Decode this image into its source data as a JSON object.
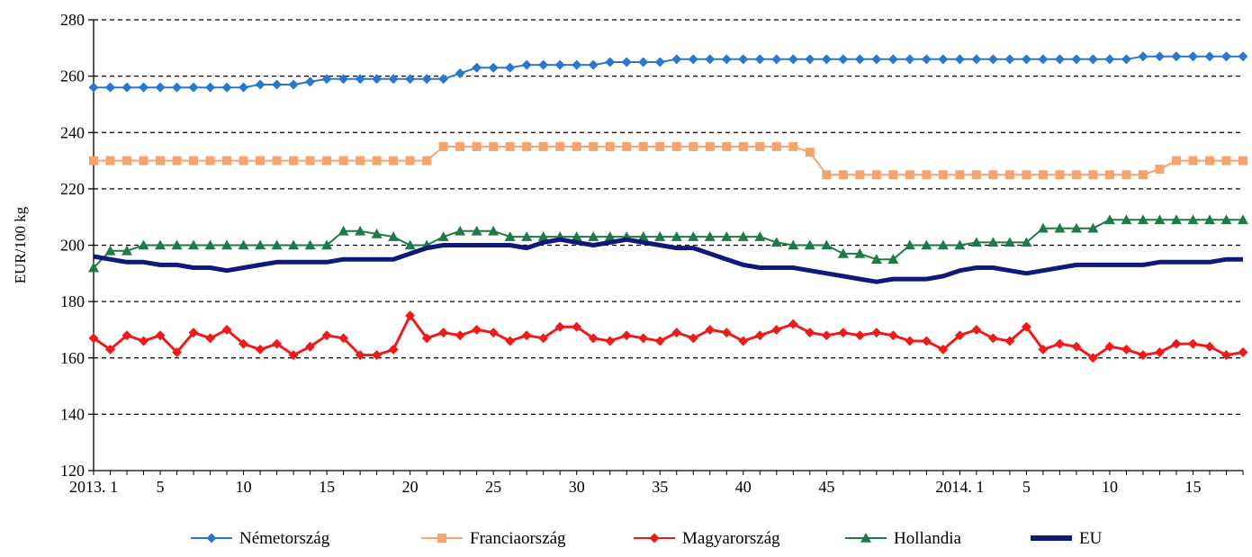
{
  "chart_data": {
    "type": "line",
    "ylabel": "EUR/100 kg",
    "xlabel": "",
    "ylim": [
      120,
      280
    ],
    "y_ticks": [
      120,
      140,
      160,
      180,
      200,
      220,
      240,
      260,
      280
    ],
    "y_tick_labels": [
      "120",
      "140",
      "160",
      "180",
      "200",
      "220",
      "240",
      "260",
      "280"
    ],
    "x_ticks": [
      {
        "index": 0,
        "label": "2013. 1"
      },
      {
        "index": 4,
        "label": "5"
      },
      {
        "index": 9,
        "label": "10"
      },
      {
        "index": 14,
        "label": "15"
      },
      {
        "index": 19,
        "label": "20"
      },
      {
        "index": 24,
        "label": "25"
      },
      {
        "index": 29,
        "label": "30"
      },
      {
        "index": 34,
        "label": "35"
      },
      {
        "index": 39,
        "label": "40"
      },
      {
        "index": 44,
        "label": "45"
      },
      {
        "index": 52,
        "label": "2014. 1"
      },
      {
        "index": 56,
        "label": "5"
      },
      {
        "index": 61,
        "label": "10"
      },
      {
        "index": 66,
        "label": "15"
      }
    ],
    "grid": "horizontal dashed",
    "legend_position": "bottom",
    "n_points": 70,
    "series": [
      {
        "name": "Németország",
        "color": "#2878d0",
        "marker": "diamond",
        "values": [
          256,
          256,
          256,
          256,
          256,
          256,
          256,
          256,
          256,
          256,
          257,
          257,
          257,
          258,
          259,
          259,
          259,
          259,
          259,
          259,
          259,
          259,
          261,
          263,
          263,
          263,
          264,
          264,
          264,
          264,
          264,
          265,
          265,
          265,
          265,
          266,
          266,
          266,
          266,
          266,
          266,
          266,
          266,
          266,
          266,
          266,
          266,
          266,
          266,
          266,
          266,
          266,
          266,
          266,
          266,
          266,
          266,
          266,
          266,
          266,
          266,
          266,
          266,
          267,
          267,
          267,
          267,
          267,
          267,
          267
        ]
      },
      {
        "name": "Franciaország",
        "color": "#f4a46c",
        "marker": "square",
        "values": [
          230,
          230,
          230,
          230,
          230,
          230,
          230,
          230,
          230,
          230,
          230,
          230,
          230,
          230,
          230,
          230,
          230,
          230,
          230,
          230,
          230,
          235,
          235,
          235,
          235,
          235,
          235,
          235,
          235,
          235,
          235,
          235,
          235,
          235,
          235,
          235,
          235,
          235,
          235,
          235,
          235,
          235,
          235,
          233,
          225,
          225,
          225,
          225,
          225,
          225,
          225,
          225,
          225,
          225,
          225,
          225,
          225,
          225,
          225,
          225,
          225,
          225,
          225,
          225,
          227,
          230,
          230,
          230,
          230,
          230
        ]
      },
      {
        "name": "Magyarország",
        "color": "#ec1c1c",
        "marker": "diamond",
        "values": [
          167,
          163,
          168,
          166,
          168,
          162,
          169,
          167,
          170,
          165,
          163,
          165,
          161,
          164,
          168,
          167,
          161,
          161,
          163,
          175,
          167,
          169,
          168,
          170,
          169,
          166,
          168,
          167,
          171,
          171,
          167,
          166,
          168,
          167,
          166,
          169,
          167,
          170,
          169,
          166,
          168,
          170,
          172,
          169,
          168,
          169,
          168,
          169,
          168,
          166,
          166,
          163,
          168,
          170,
          167,
          166,
          171,
          163,
          165,
          164,
          160,
          164,
          163,
          161,
          162,
          165,
          165,
          164,
          161,
          162
        ]
      },
      {
        "name": "Hollandia",
        "color": "#1e7a46",
        "marker": "triangle",
        "values": [
          192,
          198,
          198,
          200,
          200,
          200,
          200,
          200,
          200,
          200,
          200,
          200,
          200,
          200,
          200,
          205,
          205,
          204,
          203,
          200,
          200,
          203,
          205,
          205,
          205,
          203,
          203,
          203,
          203,
          203,
          203,
          203,
          203,
          203,
          203,
          203,
          203,
          203,
          203,
          203,
          203,
          201,
          200,
          200,
          200,
          197,
          197,
          195,
          195,
          200,
          200,
          200,
          200,
          201,
          201,
          201,
          201,
          206,
          206,
          206,
          206,
          209,
          209,
          209,
          209,
          209,
          209,
          209,
          209,
          209
        ]
      },
      {
        "name": "EU",
        "color": "#10187a",
        "marker": "none",
        "values": [
          196,
          195,
          194,
          194,
          193,
          193,
          192,
          192,
          191,
          192,
          193,
          194,
          194,
          194,
          194,
          195,
          195,
          195,
          195,
          197,
          199,
          200,
          200,
          200,
          200,
          200,
          199,
          201,
          202,
          201,
          200,
          201,
          202,
          201,
          200,
          199,
          199,
          197,
          195,
          193,
          192,
          192,
          192,
          191,
          190,
          189,
          188,
          187,
          188,
          188,
          188,
          189,
          191,
          192,
          192,
          191,
          190,
          191,
          192,
          193,
          193,
          193,
          193,
          193,
          194,
          194,
          194,
          194,
          195,
          195
        ]
      }
    ]
  }
}
